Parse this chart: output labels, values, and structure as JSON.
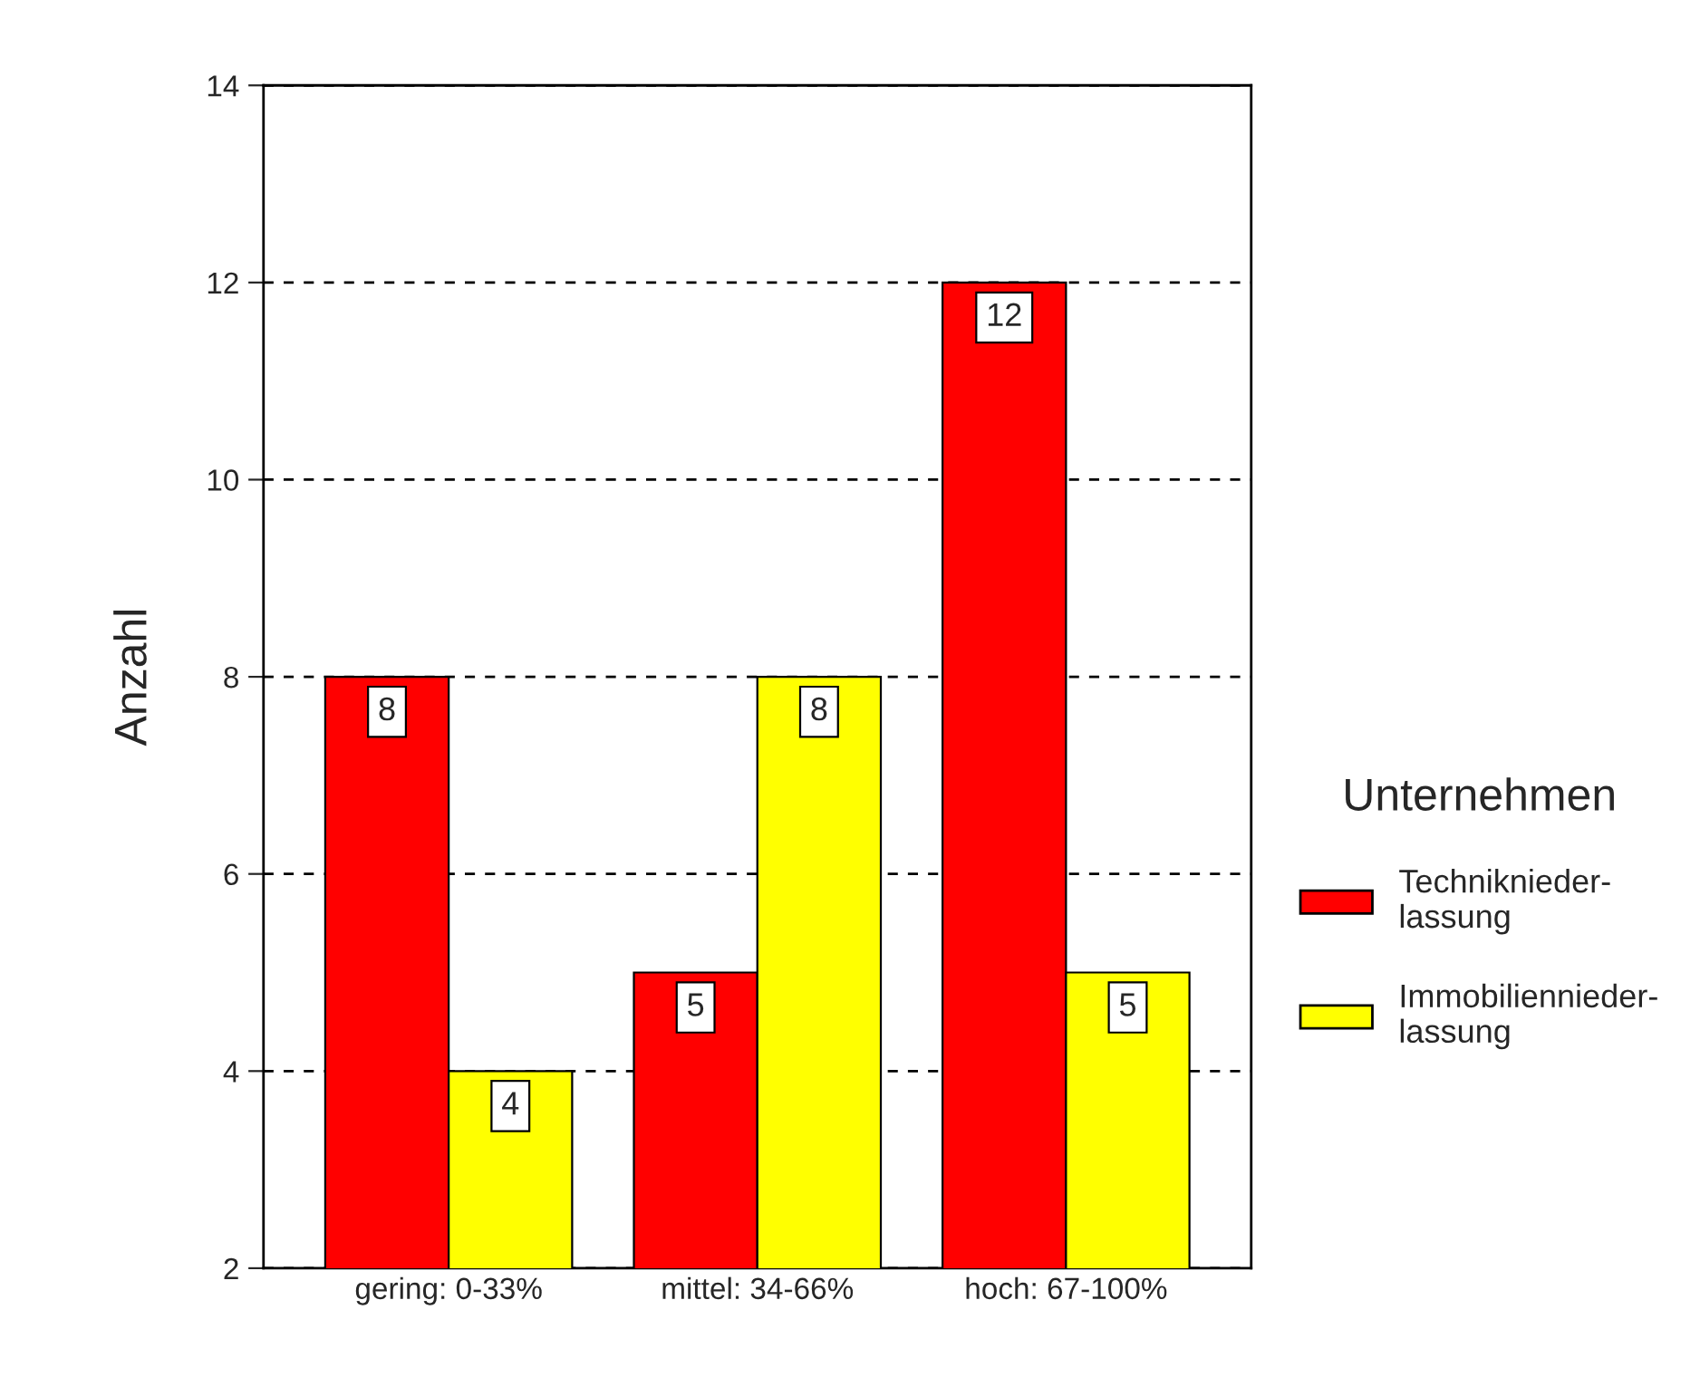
{
  "chart_data": {
    "type": "bar",
    "ylabel": "Anzahl",
    "legend_title": "Unternehmen",
    "categories": [
      "gering: 0-33%",
      "mittel: 34-66%",
      "hoch: 67-100%"
    ],
    "series": [
      {
        "name": "Techniknieder-\nlassung",
        "color": "#ff0000",
        "values": [
          8,
          5,
          12
        ]
      },
      {
        "name": "Immobiliennieder-\nlassung",
        "color": "#ffff00",
        "values": [
          4,
          8,
          5
        ]
      }
    ],
    "ylim": [
      2,
      14
    ],
    "yticks": [
      2,
      4,
      6,
      8,
      10,
      12,
      14
    ],
    "grid": "y",
    "legend": "right",
    "data_labels": true
  }
}
